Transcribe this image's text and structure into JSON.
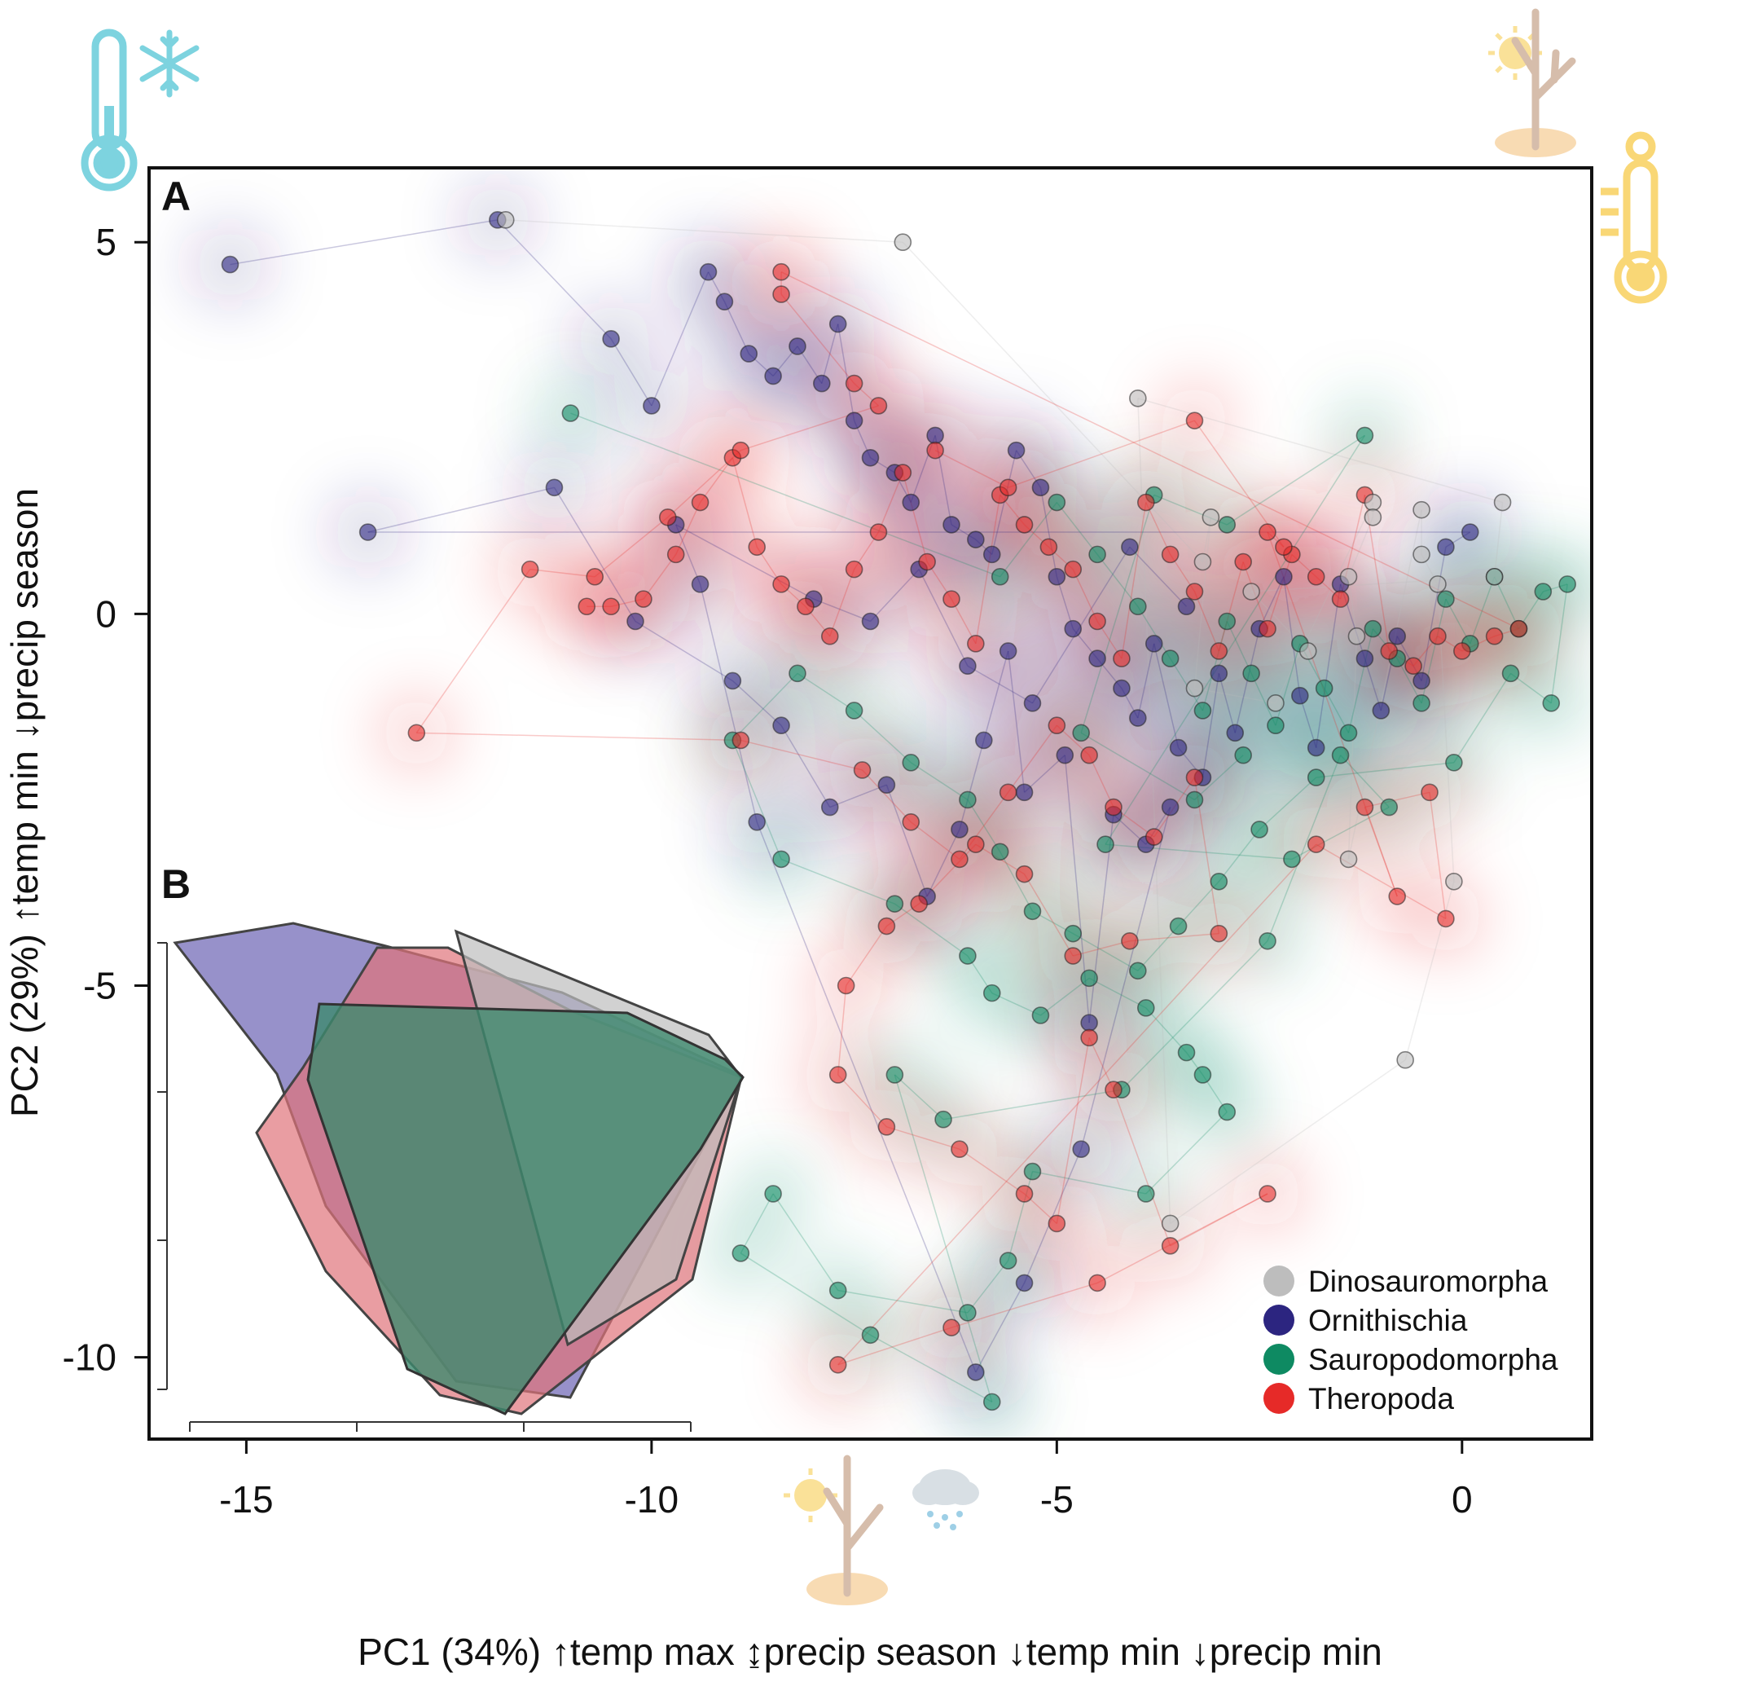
{
  "chart_data": {
    "type": "scatter",
    "panels": [
      "A",
      "B"
    ],
    "xlabel": "PC1 (34%) ↑temp max ↨precip season ↓temp min ↓precip min",
    "ylabel": "PC2 (29%) ↑temp min ↓precip season",
    "xlim": [
      -16.2,
      1.6
    ],
    "ylim": [
      -11.1,
      6.0
    ],
    "x_ticks": [
      -15,
      -10,
      -5,
      0
    ],
    "x_tick_labels": [
      "-15",
      "-10",
      "-5",
      "0"
    ],
    "y_ticks": [
      5,
      0,
      -5,
      -10
    ],
    "y_tick_labels": [
      "5",
      "0",
      "-5",
      "-10"
    ],
    "legend_position": "bottom-right",
    "series": [
      {
        "name": "Dinosauromorpha",
        "color": "#bdbdbd",
        "points": [
          [
            -11.8,
            5.3
          ],
          [
            -6.9,
            5.0
          ],
          [
            -3.2,
            0.7
          ],
          [
            -3.1,
            1.3
          ],
          [
            -3.3,
            -1.0
          ],
          [
            -2.3,
            -1.2
          ],
          [
            -1.1,
            1.5
          ],
          [
            -1.1,
            1.3
          ],
          [
            -1.4,
            0.5
          ],
          [
            -1.3,
            -0.3
          ],
          [
            -1.4,
            -3.3
          ],
          [
            -0.5,
            1.4
          ],
          [
            -0.5,
            0.8
          ],
          [
            -0.3,
            0.4
          ],
          [
            -0.1,
            -3.6
          ],
          [
            -0.7,
            -6.0
          ],
          [
            -3.6,
            -8.2
          ],
          [
            -4.0,
            2.9
          ],
          [
            0.5,
            1.5
          ],
          [
            0.4,
            0.5
          ],
          [
            -2.6,
            0.3
          ],
          [
            -1.9,
            -0.5
          ]
        ]
      },
      {
        "name": "Ornithischia",
        "color": "#2c2580",
        "points": [
          [
            -15.2,
            4.7
          ],
          [
            -11.9,
            5.3
          ],
          [
            -10.5,
            3.7
          ],
          [
            -10.0,
            2.8
          ],
          [
            -9.3,
            4.6
          ],
          [
            -9.1,
            4.2
          ],
          [
            -8.8,
            3.5
          ],
          [
            -8.5,
            3.2
          ],
          [
            -8.2,
            3.6
          ],
          [
            -7.9,
            3.1
          ],
          [
            -7.7,
            3.9
          ],
          [
            -7.5,
            2.6
          ],
          [
            -7.3,
            2.1
          ],
          [
            -7.0,
            1.9
          ],
          [
            -6.8,
            1.5
          ],
          [
            -6.5,
            2.4
          ],
          [
            -6.3,
            1.2
          ],
          [
            -6.0,
            1.0
          ],
          [
            -5.8,
            0.8
          ],
          [
            -5.5,
            2.2
          ],
          [
            -5.2,
            1.7
          ],
          [
            -5.0,
            0.5
          ],
          [
            -4.8,
            -0.2
          ],
          [
            -4.5,
            -0.6
          ],
          [
            -4.2,
            -1.0
          ],
          [
            -4.0,
            -1.4
          ],
          [
            -3.8,
            -0.4
          ],
          [
            -3.5,
            -1.8
          ],
          [
            -3.2,
            -2.2
          ],
          [
            -3.0,
            -0.8
          ],
          [
            -2.8,
            -1.6
          ],
          [
            -2.5,
            -0.2
          ],
          [
            -2.2,
            0.5
          ],
          [
            -2.0,
            -1.1
          ],
          [
            -1.8,
            -1.8
          ],
          [
            -1.5,
            0.4
          ],
          [
            -1.2,
            -0.6
          ],
          [
            -1.0,
            -1.3
          ],
          [
            -0.8,
            -0.3
          ],
          [
            -0.5,
            -0.9
          ],
          [
            -0.2,
            0.9
          ],
          [
            0.1,
            1.1
          ],
          [
            -13.5,
            1.1
          ],
          [
            -11.2,
            1.7
          ],
          [
            -10.2,
            -0.1
          ],
          [
            -9.0,
            -0.9
          ],
          [
            -8.4,
            -1.5
          ],
          [
            -7.8,
            -2.6
          ],
          [
            -7.1,
            -2.3
          ],
          [
            -6.6,
            -3.8
          ],
          [
            -6.2,
            -2.9
          ],
          [
            -5.9,
            -1.7
          ],
          [
            -5.6,
            -0.5
          ],
          [
            -5.4,
            -2.4
          ],
          [
            -4.9,
            -1.9
          ],
          [
            -4.6,
            -5.5
          ],
          [
            -4.3,
            -2.7
          ],
          [
            -3.9,
            -3.1
          ],
          [
            -3.6,
            -2.6
          ],
          [
            -4.7,
            -7.2
          ],
          [
            -5.4,
            -9.0
          ],
          [
            -6.0,
            -10.2
          ],
          [
            -8.7,
            -2.8
          ],
          [
            -9.4,
            0.4
          ],
          [
            -9.7,
            1.2
          ],
          [
            -8.0,
            0.2
          ],
          [
            -7.3,
            -0.1
          ],
          [
            -6.7,
            0.6
          ],
          [
            -6.1,
            -0.7
          ],
          [
            -5.3,
            -1.2
          ],
          [
            -4.1,
            0.9
          ],
          [
            -3.4,
            0.1
          ]
        ]
      },
      {
        "name": "Sauropodomorpha",
        "color": "#0e8a62",
        "points": [
          [
            -11.0,
            2.7
          ],
          [
            -5.7,
            0.5
          ],
          [
            -5.0,
            1.5
          ],
          [
            -4.5,
            0.8
          ],
          [
            -4.0,
            0.1
          ],
          [
            -3.6,
            -0.6
          ],
          [
            -3.2,
            -1.3
          ],
          [
            -2.9,
            -0.1
          ],
          [
            -2.6,
            -0.8
          ],
          [
            -2.3,
            -1.5
          ],
          [
            -2.0,
            -0.4
          ],
          [
            -1.7,
            -1.0
          ],
          [
            -1.4,
            -1.6
          ],
          [
            -1.1,
            -0.2
          ],
          [
            -0.8,
            -0.6
          ],
          [
            -0.5,
            -1.2
          ],
          [
            -0.2,
            0.2
          ],
          [
            0.1,
            -0.4
          ],
          [
            0.4,
            0.5
          ],
          [
            0.7,
            -0.2
          ],
          [
            1.0,
            0.3
          ],
          [
            1.3,
            0.4
          ],
          [
            1.1,
            -1.2
          ],
          [
            0.6,
            -0.8
          ],
          [
            -0.1,
            -2.0
          ],
          [
            -1.8,
            -2.2
          ],
          [
            -2.5,
            -2.9
          ],
          [
            -3.0,
            -3.6
          ],
          [
            -3.5,
            -4.2
          ],
          [
            -4.0,
            -4.8
          ],
          [
            -4.8,
            -4.3
          ],
          [
            -5.3,
            -4.0
          ],
          [
            -5.7,
            -3.2
          ],
          [
            -6.1,
            -2.5
          ],
          [
            -6.8,
            -2.0
          ],
          [
            -7.5,
            -1.3
          ],
          [
            -8.2,
            -0.8
          ],
          [
            -9.0,
            -1.7
          ],
          [
            -8.4,
            -3.3
          ],
          [
            -7.0,
            -3.9
          ],
          [
            -6.1,
            -4.6
          ],
          [
            -5.8,
            -5.1
          ],
          [
            -5.2,
            -5.4
          ],
          [
            -4.6,
            -4.9
          ],
          [
            -3.9,
            -5.3
          ],
          [
            -3.4,
            -5.9
          ],
          [
            -3.2,
            -6.2
          ],
          [
            -2.9,
            -6.7
          ],
          [
            -3.9,
            -7.8
          ],
          [
            -5.3,
            -7.5
          ],
          [
            -5.6,
            -8.7
          ],
          [
            -6.1,
            -9.4
          ],
          [
            -7.7,
            -9.1
          ],
          [
            -8.5,
            -7.8
          ],
          [
            -8.9,
            -8.6
          ],
          [
            -7.3,
            -9.7
          ],
          [
            -5.8,
            -10.6
          ],
          [
            -7.0,
            -6.2
          ],
          [
            -6.4,
            -6.8
          ],
          [
            -4.2,
            -6.4
          ],
          [
            -2.4,
            -4.4
          ],
          [
            -1.5,
            -1.9
          ],
          [
            -0.9,
            -2.6
          ],
          [
            -2.1,
            -3.3
          ],
          [
            -4.4,
            -3.1
          ],
          [
            -1.2,
            2.4
          ],
          [
            -2.9,
            1.2
          ],
          [
            -3.8,
            1.6
          ],
          [
            -4.7,
            -1.6
          ],
          [
            -3.3,
            -2.5
          ],
          [
            -2.7,
            -1.9
          ]
        ]
      },
      {
        "name": "Theropoda",
        "color": "#e62a28",
        "points": [
          [
            -10.8,
            0.1
          ],
          [
            -10.5,
            0.1
          ],
          [
            -10.1,
            0.2
          ],
          [
            -9.7,
            0.8
          ],
          [
            -9.4,
            1.5
          ],
          [
            -9.0,
            2.1
          ],
          [
            -8.7,
            0.9
          ],
          [
            -8.4,
            0.4
          ],
          [
            -8.1,
            0.1
          ],
          [
            -7.8,
            -0.3
          ],
          [
            -7.5,
            0.6
          ],
          [
            -7.2,
            1.1
          ],
          [
            -6.9,
            1.9
          ],
          [
            -6.6,
            0.7
          ],
          [
            -6.3,
            0.2
          ],
          [
            -6.0,
            -0.4
          ],
          [
            -5.7,
            1.6
          ],
          [
            -5.4,
            1.2
          ],
          [
            -5.1,
            0.9
          ],
          [
            -4.8,
            0.6
          ],
          [
            -4.5,
            -0.1
          ],
          [
            -4.2,
            -0.6
          ],
          [
            -3.9,
            1.5
          ],
          [
            -3.6,
            0.8
          ],
          [
            -3.3,
            0.3
          ],
          [
            -3.0,
            -0.5
          ],
          [
            -2.7,
            0.7
          ],
          [
            -2.4,
            -0.2
          ],
          [
            -2.1,
            0.8
          ],
          [
            -1.8,
            0.5
          ],
          [
            -1.5,
            0.2
          ],
          [
            -1.2,
            1.6
          ],
          [
            -0.9,
            -0.5
          ],
          [
            -0.6,
            -0.7
          ],
          [
            -0.3,
            -0.3
          ],
          [
            0.0,
            -0.5
          ],
          [
            0.4,
            -0.3
          ],
          [
            0.7,
            -0.2
          ],
          [
            -8.4,
            4.6
          ],
          [
            -8.4,
            4.3
          ],
          [
            -7.5,
            3.1
          ],
          [
            -7.2,
            2.8
          ],
          [
            -8.9,
            2.2
          ],
          [
            -9.8,
            1.3
          ],
          [
            -10.7,
            0.5
          ],
          [
            -11.5,
            0.6
          ],
          [
            -12.9,
            -1.6
          ],
          [
            -8.9,
            -1.7
          ],
          [
            -7.4,
            -2.1
          ],
          [
            -6.8,
            -2.8
          ],
          [
            -6.2,
            -3.3
          ],
          [
            -5.6,
            -2.4
          ],
          [
            -5.0,
            -1.5
          ],
          [
            -4.6,
            -1.9
          ],
          [
            -4.3,
            -2.6
          ],
          [
            -3.8,
            -3.0
          ],
          [
            -3.3,
            -2.2
          ],
          [
            -3.0,
            -4.3
          ],
          [
            -4.1,
            -4.4
          ],
          [
            -4.8,
            -4.6
          ],
          [
            -5.4,
            -3.5
          ],
          [
            -6.0,
            -3.1
          ],
          [
            -6.7,
            -3.9
          ],
          [
            -7.1,
            -4.2
          ],
          [
            -7.6,
            -5.0
          ],
          [
            -7.7,
            -6.2
          ],
          [
            -7.1,
            -6.9
          ],
          [
            -6.2,
            -7.2
          ],
          [
            -5.4,
            -7.8
          ],
          [
            -5.0,
            -8.2
          ],
          [
            -4.6,
            -5.7
          ],
          [
            -4.3,
            -6.4
          ],
          [
            -3.6,
            -8.5
          ],
          [
            -2.4,
            -7.8
          ],
          [
            -4.5,
            -9.0
          ],
          [
            -6.3,
            -9.6
          ],
          [
            -7.7,
            -10.1
          ],
          [
            -1.8,
            -3.1
          ],
          [
            -0.2,
            -4.1
          ],
          [
            -0.4,
            -2.4
          ],
          [
            -1.2,
            -2.6
          ],
          [
            -0.8,
            -3.8
          ],
          [
            -2.4,
            1.1
          ],
          [
            -2.2,
            0.9
          ],
          [
            -3.3,
            2.6
          ],
          [
            -5.6,
            1.7
          ],
          [
            -6.5,
            2.2
          ]
        ]
      }
    ],
    "panel_b": {
      "description_hidden": true,
      "hulls": [
        {
          "name": "Ornithischia",
          "color": "#6b63b3"
        },
        {
          "name": "Theropoda",
          "color": "#e0737a"
        },
        {
          "name": "Dinosauromorpha",
          "color": "#bdbdbd"
        },
        {
          "name": "Sauropodomorpha",
          "color": "#3d8a6e"
        }
      ]
    }
  },
  "legend": {
    "items": [
      {
        "label": "Dinosauromorpha",
        "color": "#bdbdbd"
      },
      {
        "label": "Ornithischia",
        "color": "#2c2580"
      },
      {
        "label": "Sauropodomorpha",
        "color": "#0e8a62"
      },
      {
        "label": "Theropoda",
        "color": "#e62a28"
      }
    ]
  },
  "icons": {
    "top_left": [
      "thermometer-cold-icon",
      "snowflake-icon"
    ],
    "top_right": [
      "sun-dead-tree-icon",
      "thermometer-hot-icon"
    ],
    "bottom": [
      "sun-dead-tree-icon",
      "rain-cloud-icon"
    ],
    "colors": {
      "cold": "#7dd3df",
      "hot": "#f9d776",
      "tree": "#c9a890"
    }
  }
}
